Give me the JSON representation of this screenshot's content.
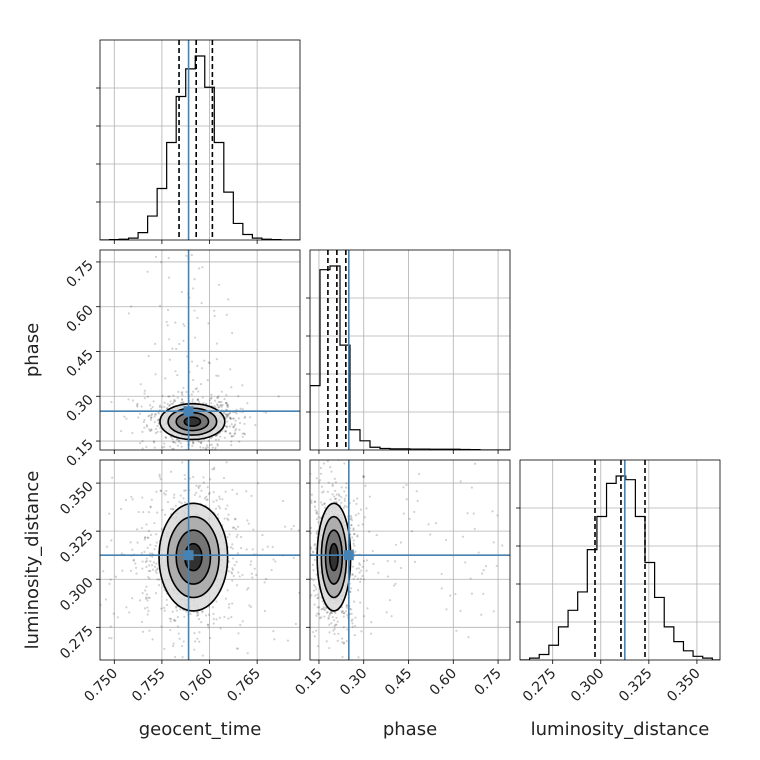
{
  "chart_data": {
    "type": "corner",
    "parameters": [
      {
        "key": "geocent_time",
        "label": "geocent_time",
        "range": [
          0.7485,
          0.7695
        ],
        "ticks": [
          0.75,
          0.755,
          0.76,
          0.765
        ],
        "tick_labels": [
          "0.750",
          "0.755",
          "0.760",
          "0.765"
        ],
        "truth": 0.7578,
        "quantiles": [
          0.7568,
          0.7586,
          0.7603
        ]
      },
      {
        "key": "phase",
        "label": "phase",
        "range": [
          0.12,
          0.79
        ],
        "ticks": [
          0.15,
          0.3,
          0.45,
          0.6,
          0.75
        ],
        "tick_labels": [
          "0.15",
          "0.30",
          "0.45",
          "0.60",
          "0.75"
        ],
        "truth": 0.25,
        "quantiles": [
          0.18,
          0.21,
          0.24
        ]
      },
      {
        "key": "luminosity_distance",
        "label": "luminosity_distance",
        "range": [
          0.258,
          0.362
        ],
        "ticks": [
          0.275,
          0.3,
          0.325,
          0.35
        ],
        "tick_labels": [
          "0.275",
          "0.300",
          "0.325",
          "0.350"
        ],
        "truth": 0.3125,
        "quantiles": [
          0.297,
          0.3105,
          0.323
        ]
      }
    ],
    "histograms": {
      "geocent_time": {
        "edges": [
          0.7485,
          0.7495,
          0.7505,
          0.7515,
          0.7525,
          0.7535,
          0.7545,
          0.7555,
          0.7565,
          0.7575,
          0.7585,
          0.7595,
          0.7605,
          0.7615,
          0.7625,
          0.7635,
          0.7645,
          0.7655,
          0.7665,
          0.7675,
          0.7685,
          0.7695
        ],
        "counts": [
          0.0,
          0.002,
          0.004,
          0.01,
          0.04,
          0.13,
          0.28,
          0.53,
          0.78,
          0.93,
          1.0,
          0.83,
          0.53,
          0.26,
          0.09,
          0.03,
          0.01,
          0.004,
          0.002,
          0.0,
          0.0
        ]
      },
      "phase": {
        "edges": [
          0.12,
          0.1535,
          0.187,
          0.2205,
          0.254,
          0.2875,
          0.321,
          0.3545,
          0.388,
          0.4215,
          0.455,
          0.4885,
          0.522,
          0.5555,
          0.589,
          0.6225,
          0.656,
          0.6895,
          0.723,
          0.7565,
          0.79
        ],
        "counts": [
          0.35,
          0.98,
          1.0,
          0.57,
          0.11,
          0.05,
          0.015,
          0.008,
          0.006,
          0.006,
          0.005,
          0.005,
          0.004,
          0.004,
          0.004,
          0.003,
          0.002,
          0.0,
          0.0,
          0.0
        ]
      },
      "luminosity_distance": {
        "edges": [
          0.258,
          0.263,
          0.268,
          0.273,
          0.278,
          0.283,
          0.288,
          0.293,
          0.298,
          0.303,
          0.308,
          0.313,
          0.318,
          0.323,
          0.328,
          0.333,
          0.338,
          0.343,
          0.348,
          0.353,
          0.358,
          0.362
        ],
        "counts": [
          0.0,
          0.01,
          0.03,
          0.08,
          0.18,
          0.27,
          0.37,
          0.6,
          0.78,
          0.96,
          1.0,
          0.98,
          0.78,
          0.53,
          0.34,
          0.18,
          0.1,
          0.05,
          0.02,
          0.01,
          0.0
        ]
      }
    },
    "pairs": [
      {
        "x": "geocent_time",
        "y": "phase",
        "center": [
          0.7582,
          0.215
        ],
        "sigma": [
          0.0017,
          0.03
        ],
        "contour_levels": [
          0.5,
          1.0,
          1.5,
          2.0
        ]
      },
      {
        "x": "geocent_time",
        "y": "luminosity_distance",
        "center": [
          0.7583,
          0.3115
        ],
        "sigma": [
          0.0018,
          0.014
        ],
        "contour_levels": [
          0.5,
          1.0,
          1.5,
          2.0
        ]
      },
      {
        "x": "phase",
        "y": "luminosity_distance",
        "center": [
          0.2,
          0.3115
        ],
        "sigma": [
          0.028,
          0.014
        ],
        "contour_levels": [
          0.5,
          1.0,
          1.5,
          2.0
        ]
      }
    ],
    "truth_color": "#4682b4",
    "hist_color": "#000000",
    "quantile_style": "dashed",
    "grid": true
  }
}
